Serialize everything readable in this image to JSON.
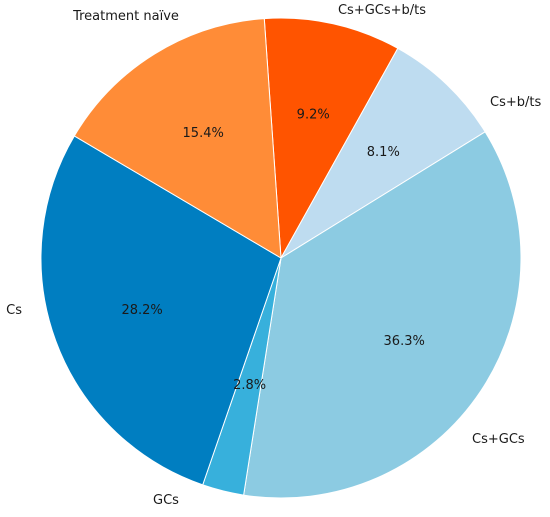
{
  "chart_data": {
    "type": "pie",
    "title": "",
    "start_angle_deg": -4,
    "direction": "clockwise",
    "slices": [
      {
        "label": "Cs+GCs+b/ts",
        "value": 9.2,
        "value_label": "9.2%",
        "color": "#ff5400"
      },
      {
        "label": "Cs+b/ts",
        "value": 8.1,
        "value_label": "8.1%",
        "color": "#bedcf0"
      },
      {
        "label": "Cs+GCs",
        "value": 36.3,
        "value_label": "36.3%",
        "color": "#8ccbe2"
      },
      {
        "label": "GCs",
        "value": 2.8,
        "value_label": "2.8%",
        "color": "#37b0dc"
      },
      {
        "label": "Cs",
        "value": 28.2,
        "value_label": "28.2%",
        "color": "#007ec1"
      },
      {
        "label": "Treatment naïve",
        "value": 15.4,
        "value_label": "15.4%",
        "color": "#ff8c37"
      }
    ]
  }
}
